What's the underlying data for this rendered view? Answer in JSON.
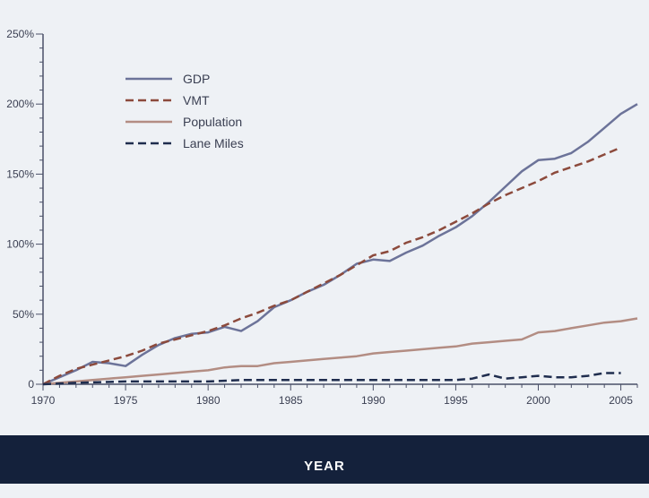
{
  "chart_data": {
    "type": "line",
    "title": "",
    "xlabel": "YEAR",
    "ylabel": "",
    "xlim": [
      1970,
      2006
    ],
    "ylim": [
      0,
      250
    ],
    "x_ticks": [
      {
        "value": 1970,
        "label": "1970"
      },
      {
        "value": 1975,
        "label": "1975"
      },
      {
        "value": 1980,
        "label": "1980"
      },
      {
        "value": 1985,
        "label": "1985"
      },
      {
        "value": 1990,
        "label": "1990"
      },
      {
        "value": 1995,
        "label": "1995"
      },
      {
        "value": 2000,
        "label": "2000"
      },
      {
        "value": 2005,
        "label": "2005"
      }
    ],
    "y_ticks": [
      {
        "value": 0,
        "label": "0"
      },
      {
        "value": 50,
        "label": "50%"
      },
      {
        "value": 100,
        "label": "100%"
      },
      {
        "value": 150,
        "label": "150%"
      },
      {
        "value": 200,
        "label": "200%"
      },
      {
        "value": 250,
        "label": "250%"
      }
    ],
    "grid": false,
    "legend_position": "top-left",
    "series": [
      {
        "name": "GDP",
        "color": "#6c7399",
        "dash": "solid",
        "points": [
          [
            1970,
            0
          ],
          [
            1971,
            5
          ],
          [
            1972,
            10
          ],
          [
            1973,
            16
          ],
          [
            1974,
            15
          ],
          [
            1975,
            13
          ],
          [
            1976,
            21
          ],
          [
            1977,
            28
          ],
          [
            1978,
            33
          ],
          [
            1979,
            36
          ],
          [
            1980,
            37
          ],
          [
            1981,
            41
          ],
          [
            1982,
            38
          ],
          [
            1983,
            45
          ],
          [
            1984,
            55
          ],
          [
            1985,
            60
          ],
          [
            1986,
            66
          ],
          [
            1987,
            71
          ],
          [
            1988,
            78
          ],
          [
            1989,
            86
          ],
          [
            1990,
            89
          ],
          [
            1991,
            88
          ],
          [
            1992,
            94
          ],
          [
            1993,
            99
          ],
          [
            1994,
            106
          ],
          [
            1995,
            112
          ],
          [
            1996,
            120
          ],
          [
            1997,
            130
          ],
          [
            1998,
            141
          ],
          [
            1999,
            152
          ],
          [
            2000,
            160
          ],
          [
            2001,
            161
          ],
          [
            2002,
            165
          ],
          [
            2003,
            173
          ],
          [
            2004,
            183
          ],
          [
            2005,
            193
          ],
          [
            2006,
            200
          ]
        ]
      },
      {
        "name": "VMT",
        "color": "#8c4a3c",
        "dash": "dashed",
        "points": [
          [
            1970,
            0
          ],
          [
            1971,
            6
          ],
          [
            1972,
            11
          ],
          [
            1973,
            14
          ],
          [
            1974,
            17
          ],
          [
            1975,
            20
          ],
          [
            1976,
            24
          ],
          [
            1977,
            29
          ],
          [
            1978,
            32
          ],
          [
            1979,
            35
          ],
          [
            1980,
            38
          ],
          [
            1981,
            42
          ],
          [
            1982,
            47
          ],
          [
            1983,
            51
          ],
          [
            1984,
            56
          ],
          [
            1985,
            60
          ],
          [
            1986,
            66
          ],
          [
            1987,
            72
          ],
          [
            1988,
            78
          ],
          [
            1989,
            85
          ],
          [
            1990,
            92
          ],
          [
            1991,
            95
          ],
          [
            1992,
            101
          ],
          [
            1993,
            105
          ],
          [
            1994,
            110
          ],
          [
            1995,
            116
          ],
          [
            1996,
            122
          ],
          [
            1997,
            129
          ],
          [
            1998,
            135
          ],
          [
            1999,
            140
          ],
          [
            2000,
            145
          ],
          [
            2001,
            151
          ],
          [
            2002,
            155
          ],
          [
            2003,
            159
          ],
          [
            2004,
            164
          ],
          [
            2005,
            169
          ]
        ]
      },
      {
        "name": "Population",
        "color": "#b38d83",
        "dash": "solid",
        "points": [
          [
            1970,
            0
          ],
          [
            1971,
            1
          ],
          [
            1972,
            2
          ],
          [
            1973,
            3
          ],
          [
            1974,
            4
          ],
          [
            1975,
            5
          ],
          [
            1976,
            6
          ],
          [
            1977,
            7
          ],
          [
            1978,
            8
          ],
          [
            1979,
            9
          ],
          [
            1980,
            10
          ],
          [
            1981,
            12
          ],
          [
            1982,
            13
          ],
          [
            1983,
            13
          ],
          [
            1984,
            15
          ],
          [
            1985,
            16
          ],
          [
            1986,
            17
          ],
          [
            1987,
            18
          ],
          [
            1988,
            19
          ],
          [
            1989,
            20
          ],
          [
            1990,
            22
          ],
          [
            1991,
            23
          ],
          [
            1992,
            24
          ],
          [
            1993,
            25
          ],
          [
            1994,
            26
          ],
          [
            1995,
            27
          ],
          [
            1996,
            29
          ],
          [
            1997,
            30
          ],
          [
            1998,
            31
          ],
          [
            1999,
            32
          ],
          [
            2000,
            37
          ],
          [
            2001,
            38
          ],
          [
            2002,
            40
          ],
          [
            2003,
            42
          ],
          [
            2004,
            44
          ],
          [
            2005,
            45
          ],
          [
            2006,
            47
          ]
        ]
      },
      {
        "name": "Lane Miles",
        "color": "#1f2d4e",
        "dash": "dashed",
        "points": [
          [
            1970,
            0
          ],
          [
            1972,
            1
          ],
          [
            1975,
            2
          ],
          [
            1980,
            2
          ],
          [
            1982,
            3
          ],
          [
            1985,
            3
          ],
          [
            1990,
            3
          ],
          [
            1995,
            3
          ],
          [
            1996,
            4
          ],
          [
            1997,
            7
          ],
          [
            1998,
            4
          ],
          [
            1999,
            5
          ],
          [
            2000,
            6
          ],
          [
            2001,
            5
          ],
          [
            2002,
            5
          ],
          [
            2003,
            6
          ],
          [
            2004,
            8
          ],
          [
            2005,
            8
          ]
        ]
      }
    ]
  }
}
